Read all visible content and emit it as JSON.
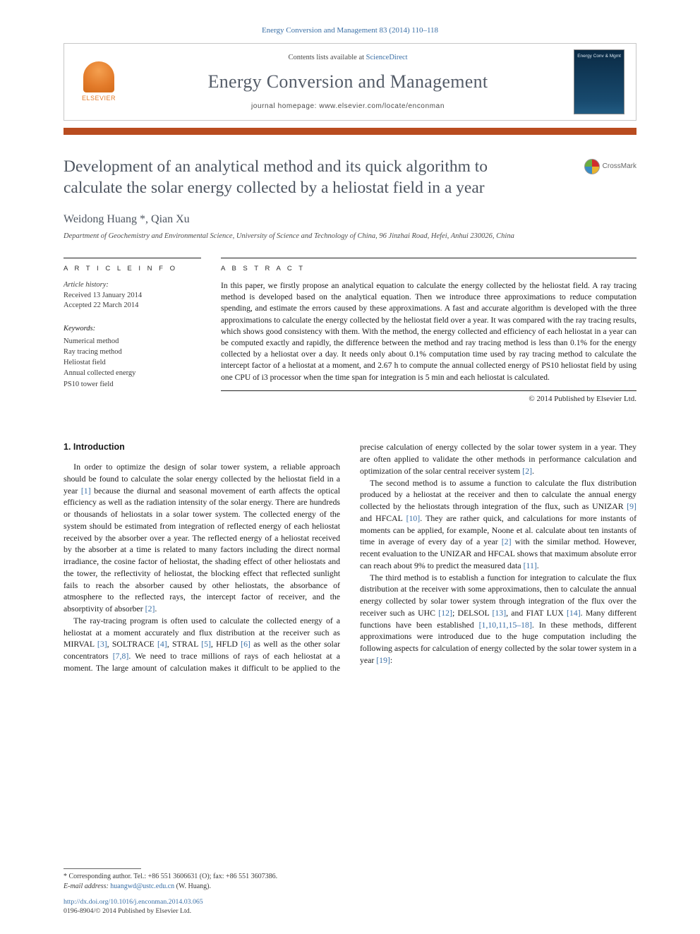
{
  "citation": "Energy Conversion and Management 83 (2014) 110–118",
  "header": {
    "contents_prefix": "Contents lists available at ",
    "sciencedirect": "ScienceDirect",
    "journal": "Energy Conversion and Management",
    "homepage": "journal homepage: www.elsevier.com/locate/enconman",
    "publisher": "ELSEVIER",
    "cover_label": "Energy Conv & Mgmt"
  },
  "crossmark": "CrossMark",
  "title": "Development of an analytical method and its quick algorithm to calculate the solar energy collected by a heliostat field in a year",
  "authors": "Weidong Huang *, Qian Xu",
  "affiliation": "Department of Geochemistry and Environmental Science, University of Science and Technology of China, 96 Jinzhai Road, Hefei, Anhui 230026, China",
  "article_info_head": "A R T I C L E   I N F O",
  "abstract_head": "A B S T R A C T",
  "history_label": "Article history:",
  "received": "Received 13 January 2014",
  "accepted": "Accepted 22 March 2014",
  "keywords_label": "Keywords:",
  "keywords": [
    "Numerical method",
    "Ray tracing method",
    "Heliostat field",
    "Annual collected energy",
    "PS10 tower field"
  ],
  "abstract": "In this paper, we firstly propose an analytical equation to calculate the energy collected by the heliostat field. A ray tracing method is developed based on the analytical equation. Then we introduce three approximations to reduce computation spending, and estimate the errors caused by these approximations. A fast and accurate algorithm is developed with the three approximations to calculate the energy collected by the heliostat field over a year. It was compared with the ray tracing results, which shows good consistency with them. With the method, the energy collected and efficiency of each heliostat in a year can be computed exactly and rapidly, the difference between the method and ray tracing method is less than 0.1% for the energy collected by a heliostat over a day. It needs only about 0.1% computation time used by ray tracing method to calculate the intercept factor of a heliostat at a moment, and 2.67 h to compute the annual collected energy of PS10 heliostat field by using one CPU of i3 processor when the time span for integration is 5 min and each heliostat is calculated.",
  "copyright": "© 2014 Published by Elsevier Ltd.",
  "intro_head": "1. Introduction",
  "intro_p1a": "In order to optimize the design of solar tower system, a reliable approach should be found to calculate the solar energy collected by the heliostat field in a year ",
  "intro_p1_ref1": "[1]",
  "intro_p1b": " because the diurnal and seasonal movement of earth affects the optical efficiency as well as the radiation intensity of the solar energy. There are hundreds or thousands of heliostats in a solar tower system. The collected energy of the system should be estimated from integration of reflected energy of each heliostat received by the absorber over a year. The reflected energy of a heliostat received by the absorber at a time is related to many factors including the direct normal irradiance, the cosine factor of heliostat, the shading effect of other heliostats and the tower, the reflectivity of heliostat, the blocking effect that reflected sunlight fails to reach the absorber caused by other heliostats, the absorbance of atmosphere to the reflected rays, the intercept factor of receiver, and the absorptivity of absorber ",
  "intro_p1_ref2": "[2]",
  "intro_p1c": ".",
  "intro_p2a": "The ray-tracing program is often used to calculate the collected energy of a heliostat at a moment accurately and flux distribution at the receiver such as MIRVAL ",
  "intro_p2_r3": "[3]",
  "intro_p2b": ", SOLTRACE ",
  "intro_p2_r4": "[4]",
  "intro_p2c": ", STRAL ",
  "intro_p2_r5": "[5]",
  "intro_p2d": ", HFLD ",
  "intro_p2_r6": "[6]",
  "intro_p2e": " as well as the other solar concentrators ",
  "intro_p2_r78": "[7,8]",
  "intro_p2f": ". We need to trace millions of rays of each heliostat at a moment. The large amount of calculation makes it difficult to be applied to the precise calculation of energy collected by the solar tower system in a year. They are often applied to validate the other methods in performance calculation and optimization of the solar central receiver system ",
  "intro_p2_r2": "[2]",
  "intro_p2g": ".",
  "intro_p3a": "The second method is to assume a function to calculate the flux distribution produced by a heliostat at the receiver and then to calculate the annual energy collected by the heliostats through integration of the flux, such as UNIZAR ",
  "intro_p3_r9": "[9]",
  "intro_p3b": " and HFCAL ",
  "intro_p3_r10": "[10]",
  "intro_p3c": ". They are rather quick, and calculations for more instants of moments can be applied, for example, Noone et al. calculate about ten instants of time in average of every day of a year ",
  "intro_p3_r2": "[2]",
  "intro_p3d": " with the similar method. However, recent evaluation to the UNIZAR and HFCAL shows that maximum absolute error can reach about 9% to predict the measured data ",
  "intro_p3_r11": "[11]",
  "intro_p3e": ".",
  "intro_p4a": "The third method is to establish a function for integration to calculate the flux distribution at the receiver with some approximations, then to calculate the annual energy collected by solar tower system through integration of the flux over the receiver such as UHC ",
  "intro_p4_r12": "[12]",
  "intro_p4b": "; DELSOL ",
  "intro_p4_r13": "[13]",
  "intro_p4c": ", and FIAT LUX ",
  "intro_p4_r14": "[14]",
  "intro_p4d": ". Many different functions have been established ",
  "intro_p4_r110": "[1,10,11,15–18]",
  "intro_p4e": ". In these methods, different approximations were introduced due to the huge computation including the following aspects for calculation of energy collected by the solar tower system in a year ",
  "intro_p4_r19": "[19]",
  "intro_p4f": ":",
  "footnote_corr": "* Corresponding author. Tel.: +86 551 3606631 (O); fax: +86 551 3607386.",
  "footnote_email_label": "E-mail address: ",
  "footnote_email": "huangwd@ustc.edu.cn",
  "footnote_email_tail": " (W. Huang).",
  "doi": "http://dx.doi.org/10.1016/j.enconman.2014.03.065",
  "issn_line": "0196-8904/© 2014 Published by Elsevier Ltd.",
  "colors": {
    "link": "#3a6fa6",
    "accent_bar": "#b94c1f",
    "heading_gray": "#4d5560"
  }
}
